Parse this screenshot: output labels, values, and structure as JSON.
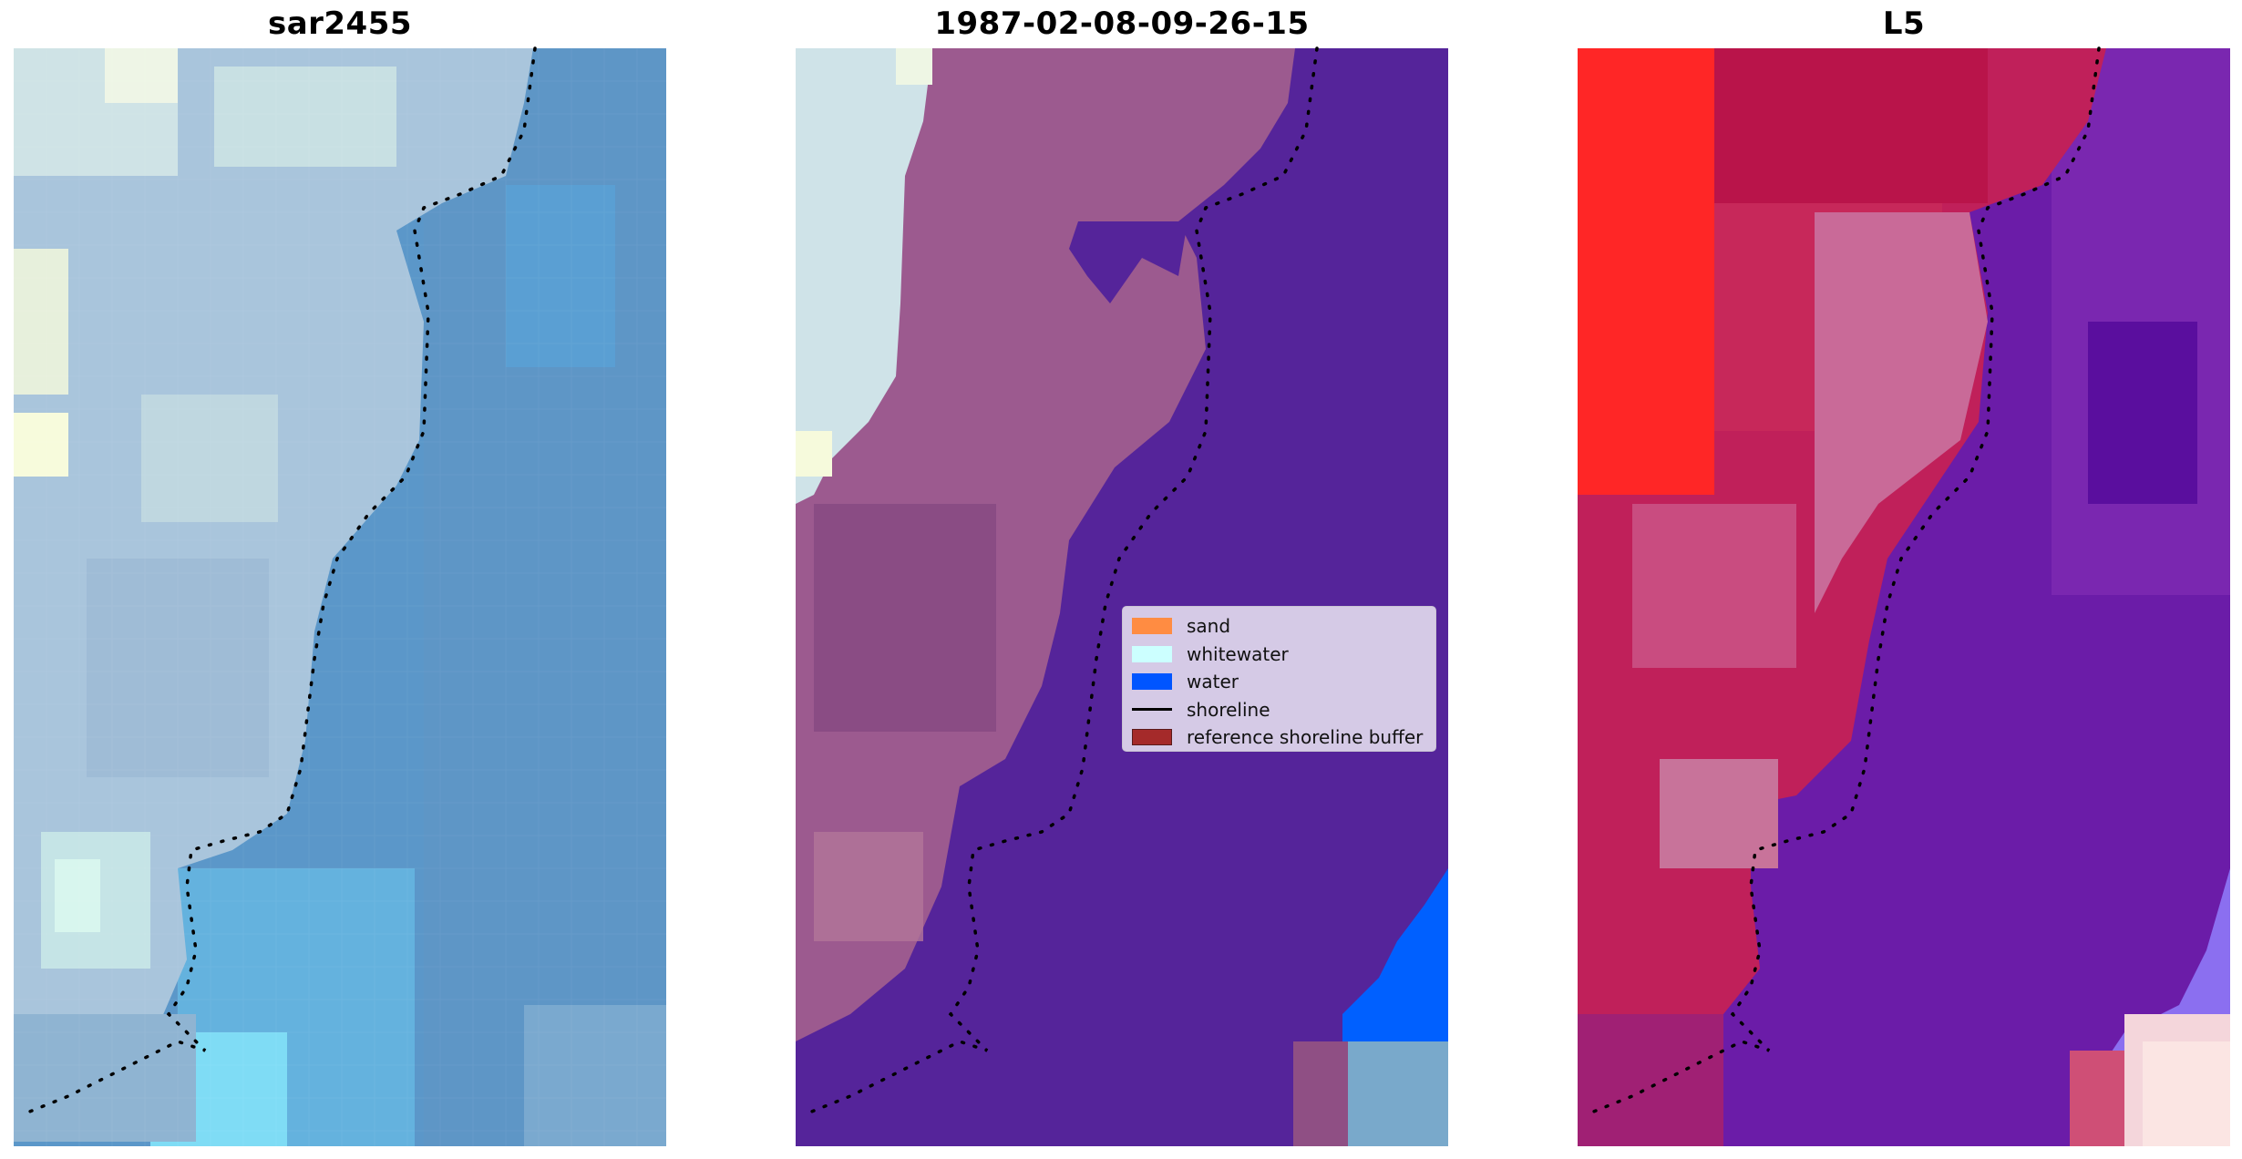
{
  "panels": [
    {
      "title": "sar2455",
      "image": "sar-satellite-rgb"
    },
    {
      "title": "1987-02-08-09-26-15",
      "image": "classified-rgb-overlay"
    },
    {
      "title": "L5",
      "image": "index-colormap"
    }
  ],
  "legend": {
    "items": [
      {
        "label": "sand",
        "color": "#ff8c42",
        "kind": "patch"
      },
      {
        "label": "whitewater",
        "color": "#ccffff",
        "kind": "patch"
      },
      {
        "label": "water",
        "color": "#0055ff",
        "kind": "patch"
      },
      {
        "label": "shoreline",
        "color": "#000000",
        "kind": "line"
      },
      {
        "label": "reference shoreline buffer",
        "color": "#a52a2a",
        "kind": "patch"
      }
    ]
  },
  "colors": {
    "sar_land": "#a9c7dc",
    "sar_sea": "#5d98c8",
    "class_land": "#9e5a8f",
    "class_water": "#55249a",
    "class_blue": "#0060ff",
    "class_whitewater": "#cfe3e8",
    "idx_red": "#ff2020",
    "idx_crimson": "#c2174a",
    "idx_pink": "#c97197",
    "idx_purple": "#6a1aa6",
    "shoreline_dots": "#000000"
  }
}
